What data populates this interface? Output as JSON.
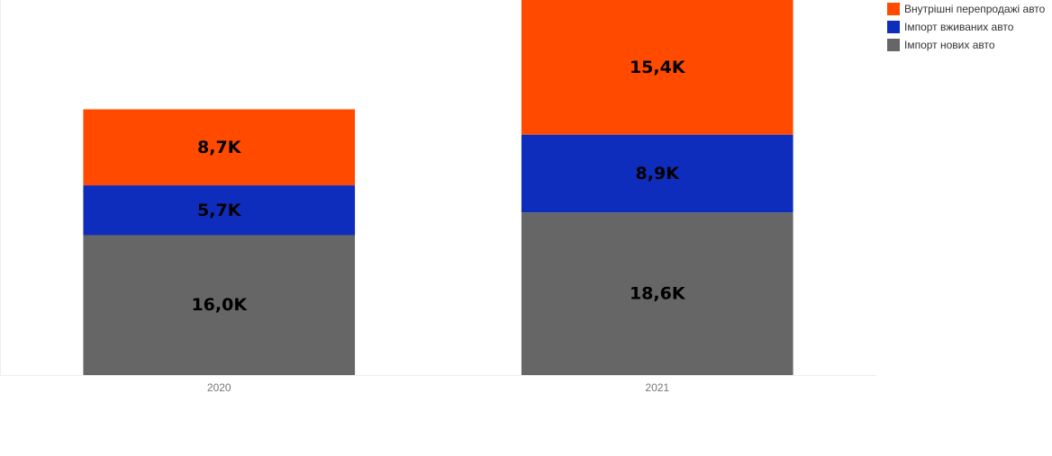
{
  "chart_data": {
    "type": "bar",
    "stacked": true,
    "categories": [
      "2020",
      "2021"
    ],
    "series": [
      {
        "name": "Імпорт нових авто",
        "color": "#666666",
        "values": [
          16.0,
          18.6
        ],
        "labels": [
          "16,0K",
          "18,6K"
        ]
      },
      {
        "name": "Імпорт вживаних авто",
        "color": "#0f2dbd",
        "values": [
          5.7,
          8.9
        ],
        "labels": [
          "5,7K",
          "8,9K"
        ]
      },
      {
        "name": "Внутрішні перепродажі авто",
        "color": "#ff4a00",
        "values": [
          8.7,
          15.4
        ],
        "labels": [
          "8,7K",
          "15,4K"
        ]
      }
    ],
    "ylim": [
      0,
      42.9
    ],
    "grid": false,
    "legend_position": "top-right"
  },
  "legend": [
    {
      "label": "Внутрішні перепродажі авто",
      "color": "#ff4a00"
    },
    {
      "label": "Імпорт вживаних авто",
      "color": "#0f2dbd"
    },
    {
      "label": "Імпорт нових авто",
      "color": "#666666"
    }
  ]
}
